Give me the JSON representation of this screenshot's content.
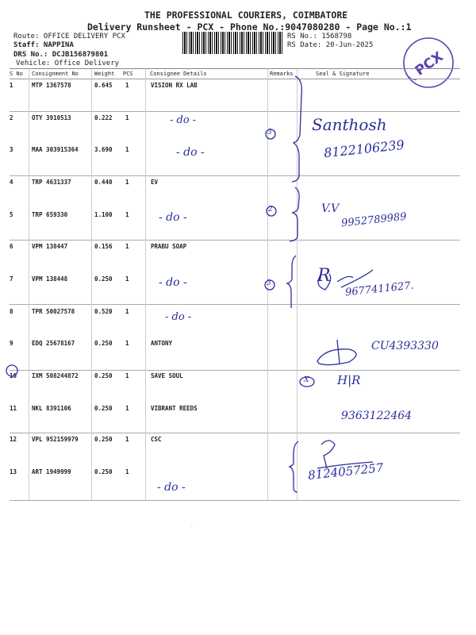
{
  "header": {
    "company": "THE PROFESSIONAL COURIERS, COIMBATORE",
    "subtitle": "Delivery Runsheet - PCX - Phone No.:9047080280 - Page No.:1",
    "route": "Route: OFFICE DELIVERY PCX",
    "staff": "Staff: NAPPINA",
    "drs_no": "DRS No.: DCJB156879801",
    "vehicle": "Vehicle: Office Delivery",
    "rs_no": "RS No.: 1568798",
    "rs_date": "RS Date: 20-Jun-2025"
  },
  "stamp": {
    "text": "PCX",
    "color": "#5b3fb0"
  },
  "table": {
    "columns": [
      "S No",
      "Consignment No",
      "Weight",
      "PCS",
      "Consignee Details",
      "Remarks",
      "Seal & Signature"
    ],
    "rows": [
      {
        "sno": "1",
        "cn": "MTP 1367578",
        "wt": "0.645",
        "pcs": "1",
        "consignee": "VISION RX LAB"
      },
      {
        "sno": "2",
        "cn": "OTY 3910513",
        "wt": "0.222",
        "pcs": "1",
        "consignee": ""
      },
      {
        "sno": "3",
        "cn": "MAA 303915364",
        "wt": "3.690",
        "pcs": "1",
        "consignee": ""
      },
      {
        "sno": "4",
        "cn": "TRP 4631337",
        "wt": "0.440",
        "pcs": "1",
        "consignee": "EV"
      },
      {
        "sno": "5",
        "cn": "TRP 659330",
        "wt": "1.100",
        "pcs": "1",
        "consignee": ""
      },
      {
        "sno": "6",
        "cn": "VPM 138447",
        "wt": "0.156",
        "pcs": "1",
        "consignee": "PRABU SOAP"
      },
      {
        "sno": "7",
        "cn": "VPM 138448",
        "wt": "0.250",
        "pcs": "1",
        "consignee": ""
      },
      {
        "sno": "8",
        "cn": "TPR 50027578",
        "wt": "0.520",
        "pcs": "1",
        "consignee": ""
      },
      {
        "sno": "9",
        "cn": "EDQ 25678167",
        "wt": "0.250",
        "pcs": "1",
        "consignee": "ANTONY"
      },
      {
        "sno": "10",
        "cn": "IXM 508244872",
        "wt": "0.250",
        "pcs": "1",
        "consignee": "SAVE SOUL"
      },
      {
        "sno": "11",
        "cn": "NKL 8391106",
        "wt": "0.250",
        "pcs": "1",
        "consignee": "VIBRANT REEDS"
      },
      {
        "sno": "12",
        "cn": "VPL 952159979",
        "wt": "0.250",
        "pcs": "1",
        "consignee": "CSC"
      },
      {
        "sno": "13",
        "cn": "ART 1949999",
        "wt": "0.250",
        "pcs": "1",
        "consignee": ""
      }
    ]
  },
  "handwritten": {
    "ditto": "- do -",
    "count3": "3",
    "count2": "2",
    "sig1_name": "Santhosh",
    "sig1_phone": "8122106239",
    "sig2_name": "V.V",
    "sig2_phone": "9952789989",
    "sig3_name": "R",
    "sig3_phone": "9677411627.",
    "sig4_phone": "CU4393330",
    "hr": "H|R",
    "x_mark": "X",
    "sig5_phone": "9363122464",
    "sig6_phone": "8124057257",
    "ink": "#2a2f9a"
  }
}
